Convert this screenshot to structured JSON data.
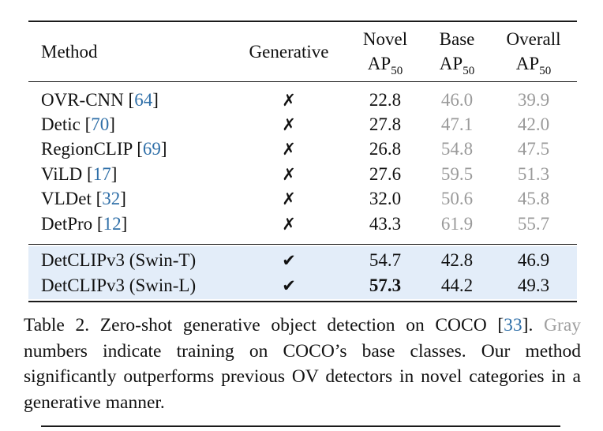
{
  "table": {
    "headers": {
      "method": "Method",
      "generative": "Generative",
      "novel_line1": "Novel",
      "novel_line2": "AP",
      "novel_sub": "50",
      "base_line1": "Base",
      "base_line2": "AP",
      "base_sub": "50",
      "overall_line1": "Overall",
      "overall_line2": "AP",
      "overall_sub": "50"
    },
    "prior_rows": [
      {
        "method": "OVR-CNN",
        "ref": "64",
        "generative": "✗",
        "novel": "22.8",
        "base": "46.0",
        "overall": "39.9"
      },
      {
        "method": "Detic",
        "ref": "70",
        "generative": "✗",
        "novel": "27.8",
        "base": "47.1",
        "overall": "42.0"
      },
      {
        "method": "RegionCLIP",
        "ref": "69",
        "generative": "✗",
        "novel": "26.8",
        "base": "54.8",
        "overall": "47.5"
      },
      {
        "method": "ViLD",
        "ref": "17",
        "generative": "✗",
        "novel": "27.6",
        "base": "59.5",
        "overall": "51.3"
      },
      {
        "method": "VLDet",
        "ref": "32",
        "generative": "✗",
        "novel": "32.0",
        "base": "50.6",
        "overall": "45.8"
      },
      {
        "method": "DetPro",
        "ref": "12",
        "generative": "✗",
        "novel": "43.3",
        "base": "61.9",
        "overall": "55.7"
      }
    ],
    "ours_rows": [
      {
        "method": "DetCLIPv3 (Swin-T)",
        "generative": "✔",
        "novel": "54.7",
        "base": "42.8",
        "overall": "46.9"
      },
      {
        "method": "DetCLIPv3 (Swin-L)",
        "generative": "✔",
        "novel": "57.3",
        "base": "44.2",
        "overall": "49.3"
      }
    ]
  },
  "caption": {
    "part1": "Table 2.  Zero-shot generative object detection on COCO [",
    "ref": "33",
    "part2": "].",
    "gray_word": "Gray",
    "part3": " numbers indicate training on COCO’s base classes.  Our method significantly outperforms previous OV detectors in novel categories in a generative manner."
  },
  "colors": {
    "gray_text": "#9a9a9a",
    "reference_link": "#2f6fa8",
    "highlight_row": "#e3edf9"
  }
}
